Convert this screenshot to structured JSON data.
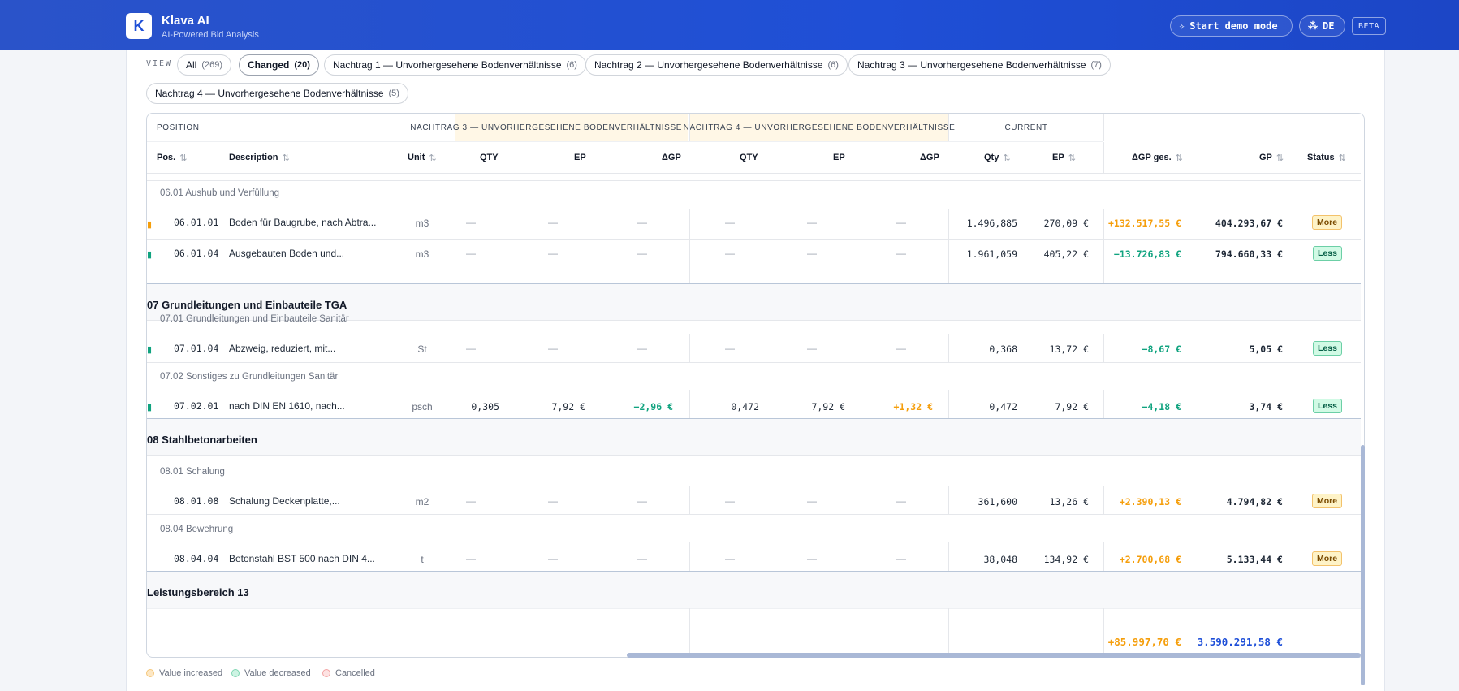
{
  "app": {
    "title": "Klava AI",
    "subtitle": "AI-Powered Bid Analysis",
    "logo_letter": "K"
  },
  "header": {
    "demo_button": "Start demo mode",
    "lang_button": "DE",
    "beta_badge": "BETA"
  },
  "view": {
    "label": "VIEW",
    "chips": [
      {
        "label": "All",
        "count": "(269)"
      },
      {
        "label": "Changed",
        "count": "(20)"
      },
      {
        "label": "Nachtrag 1 — Unvorhergesehene Bodenverhältnisse",
        "count": "(6)"
      },
      {
        "label": "Nachtrag 2 — Unvorhergesehene Bodenverhältnisse",
        "count": "(6)"
      },
      {
        "label": "Nachtrag 3 — Unvorhergesehene Bodenverhältnisse",
        "count": "(7)"
      },
      {
        "label": "Nachtrag 4 — Unvorhergesehene Bodenverhältnisse",
        "count": "(5)"
      }
    ]
  },
  "table": {
    "groups": {
      "position": "POSITION",
      "n3": "NACHTRAG 3 — UNVORHERGESEHENE BODENVERHÄLTNISSE",
      "n4": "NACHTRAG 4 — UNVORHERGESEHENE BODENVERHÄLTNISSE",
      "current": "CURRENT"
    },
    "columns": {
      "pos": "Pos.",
      "desc": "Description",
      "unit": "Unit",
      "n3_qty": "QTY",
      "n3_ep": "EP",
      "n3_dgp": "ΔGP",
      "n4_qty": "QTY",
      "n4_ep": "EP",
      "n4_dgp": "ΔGP",
      "cur_qty": "Qty",
      "cur_ep": "EP",
      "dgp_ges": "ΔGP ges.",
      "gp": "GP",
      "status": "Status"
    },
    "sort_icon": "sort-icon",
    "dash": "—",
    "sections": {
      "s06_01": "06.01 Aushub und Verfüllung",
      "s07": "07 Grundleitungen und Einbauteile TGA",
      "s07_01": "07.01 Grundleitungen und Einbauteile Sanitär",
      "s07_02": "07.02 Sonstiges zu Grundleitungen Sanitär",
      "s08": "08 Stahlbetonarbeiten",
      "s08_01": "08.01 Schalung",
      "s08_04": "08.04 Bewehrung",
      "s13": "Leistungsbereich 13"
    },
    "rows": [
      {
        "pos": "06.01.01",
        "desc": "Boden für Baugrube, nach Abtra...",
        "unit": "m3",
        "n3_qty": "—",
        "n3_ep": "—",
        "n3_dgp": "—",
        "n4_qty": "—",
        "n4_ep": "—",
        "n4_dgp": "—",
        "cur_qty": "1.496,885",
        "cur_ep": "270,09 €",
        "dgp_ges": "+132.517,55 €",
        "gp": "404.293,67 €",
        "status": "More"
      },
      {
        "pos": "06.01.04",
        "desc": "Ausgebauten Boden und...",
        "unit": "m3",
        "n3_qty": "—",
        "n3_ep": "—",
        "n3_dgp": "—",
        "n4_qty": "—",
        "n4_ep": "—",
        "n4_dgp": "—",
        "cur_qty": "1.961,059",
        "cur_ep": "405,22 €",
        "dgp_ges": "−13.726,83 €",
        "gp": "794.660,33 €",
        "status": "Less"
      },
      {
        "pos": "07.01.04",
        "desc": "Abzweig, reduziert, mit...",
        "unit": "St",
        "n3_qty": "—",
        "n3_ep": "—",
        "n3_dgp": "—",
        "n4_qty": "—",
        "n4_ep": "—",
        "n4_dgp": "—",
        "cur_qty": "0,368",
        "cur_ep": "13,72 €",
        "dgp_ges": "−8,67 €",
        "gp": "5,05 €",
        "status": "Less"
      },
      {
        "pos": "07.02.01",
        "desc": "nach DIN EN 1610, nach...",
        "unit": "psch",
        "n3_qty": "0,305",
        "n3_ep": "7,92 €",
        "n3_dgp": "−2,96 €",
        "n4_qty": "0,472",
        "n4_ep": "7,92 €",
        "n4_dgp": "+1,32 €",
        "cur_qty": "0,472",
        "cur_ep": "7,92 €",
        "dgp_ges": "−4,18 €",
        "gp": "3,74 €",
        "status": "Less"
      },
      {
        "pos": "08.01.08",
        "desc": "Schalung Deckenplatte,...",
        "unit": "m2",
        "n3_qty": "—",
        "n3_ep": "—",
        "n3_dgp": "—",
        "n4_qty": "—",
        "n4_ep": "—",
        "n4_dgp": "—",
        "cur_qty": "361,600",
        "cur_ep": "13,26 €",
        "dgp_ges": "+2.390,13 €",
        "gp": "4.794,82 €",
        "status": "More"
      },
      {
        "pos": "08.04.04",
        "desc": "Betonstahl BST 500 nach DIN 4...",
        "unit": "t",
        "n3_qty": "—",
        "n3_ep": "—",
        "n3_dgp": "—",
        "n4_qty": "—",
        "n4_ep": "—",
        "n4_dgp": "—",
        "cur_qty": "38,048",
        "cur_ep": "134,92 €",
        "dgp_ges": "+2.700,68 €",
        "gp": "5.133,44 €",
        "status": "More"
      }
    ],
    "totals": {
      "dgp_ges": "+85.997,70 €",
      "gp": "3.590.291,58 €"
    }
  },
  "legend": {
    "increased": "Value increased",
    "decreased": "Value decreased",
    "cancelled": "Cancelled"
  },
  "colors": {
    "brand": "#1f4fd6",
    "increase": "#f59e0b",
    "decrease": "#10a37f",
    "cancelled": "#fca5a5",
    "total_blue": "#1d4ed8"
  }
}
